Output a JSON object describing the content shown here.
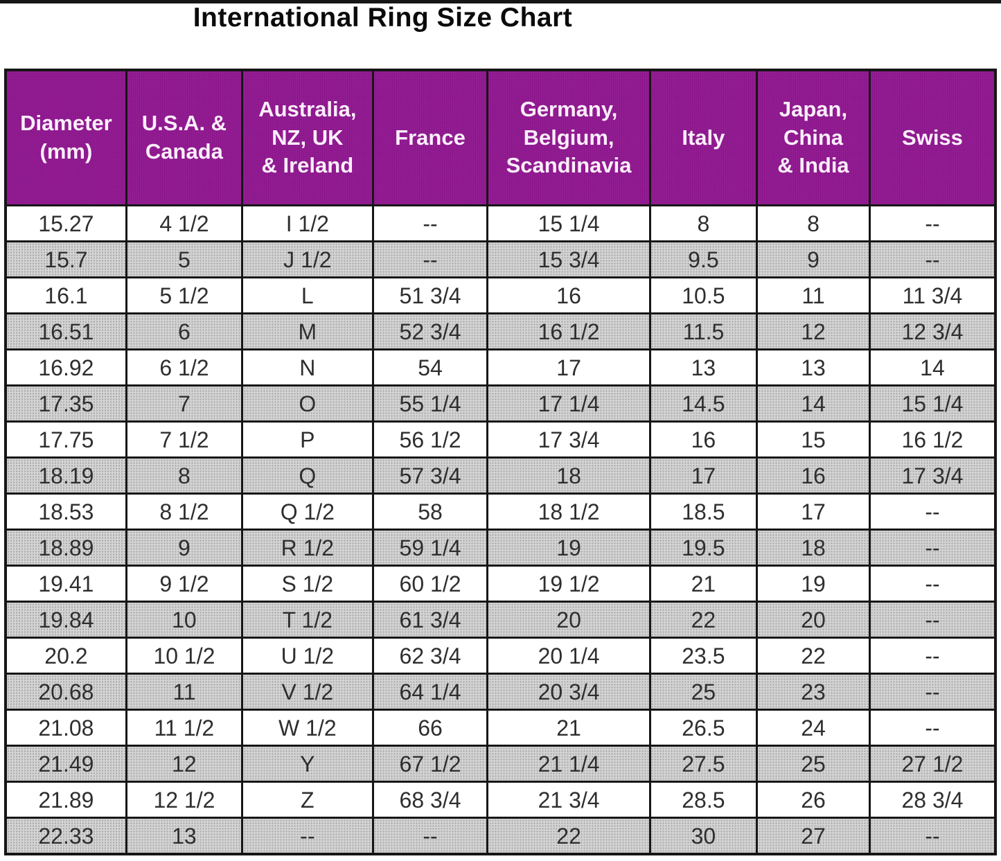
{
  "title": "International Ring Size Chart",
  "chart_data": {
    "type": "table",
    "title": "International Ring Size Chart",
    "columns": [
      {
        "id": "diameter-mm",
        "label": "Diameter\n(mm)"
      },
      {
        "id": "usa-canada",
        "label": "U.S.A. &\nCanada"
      },
      {
        "id": "australia-nz-uk-ireland",
        "label": "Australia,\nNZ, UK\n& Ireland"
      },
      {
        "id": "france",
        "label": "France"
      },
      {
        "id": "germany-belgium-scandinavia",
        "label": "Germany,\nBelgium,\nScandinavia"
      },
      {
        "id": "italy",
        "label": "Italy"
      },
      {
        "id": "japan-china-india",
        "label": "Japan,\nChina\n& India"
      },
      {
        "id": "swiss",
        "label": "Swiss"
      }
    ],
    "col_widths_pct": [
      12.2,
      11.7,
      13.2,
      11.6,
      16.4,
      10.8,
      11.4,
      12.7
    ],
    "rows": [
      [
        "15.27",
        "4 1/2",
        "I 1/2",
        "--",
        "15 1/4",
        "8",
        "8",
        "--"
      ],
      [
        "15.7",
        "5",
        "J 1/2",
        "--",
        "15 3/4",
        "9.5",
        "9",
        "--"
      ],
      [
        "16.1",
        "5 1/2",
        "L",
        "51 3/4",
        "16",
        "10.5",
        "11",
        "11 3/4"
      ],
      [
        "16.51",
        "6",
        "M",
        "52 3/4",
        "16 1/2",
        "11.5",
        "12",
        "12 3/4"
      ],
      [
        "16.92",
        "6 1/2",
        "N",
        "54",
        "17",
        "13",
        "13",
        "14"
      ],
      [
        "17.35",
        "7",
        "O",
        "55 1/4",
        "17 1/4",
        "14.5",
        "14",
        "15 1/4"
      ],
      [
        "17.75",
        "7 1/2",
        "P",
        "56 1/2",
        "17 3/4",
        "16",
        "15",
        "16 1/2"
      ],
      [
        "18.19",
        "8",
        "Q",
        "57 3/4",
        "18",
        "17",
        "16",
        "17 3/4"
      ],
      [
        "18.53",
        "8 1/2",
        "Q 1/2",
        "58",
        "18 1/2",
        "18.5",
        "17",
        "--"
      ],
      [
        "18.89",
        "9",
        "R 1/2",
        "59 1/4",
        "19",
        "19.5",
        "18",
        "--"
      ],
      [
        "19.41",
        "9 1/2",
        "S 1/2",
        "60 1/2",
        "19 1/2",
        "21",
        "19",
        "--"
      ],
      [
        "19.84",
        "10",
        "T 1/2",
        "61 3/4",
        "20",
        "22",
        "20",
        "--"
      ],
      [
        "20.2",
        "10 1/2",
        "U 1/2",
        "62 3/4",
        "20 1/4",
        "23.5",
        "22",
        "--"
      ],
      [
        "20.68",
        "11",
        "V 1/2",
        "64 1/4",
        "20 3/4",
        "25",
        "23",
        "--"
      ],
      [
        "21.08",
        "11 1/2",
        "W 1/2",
        "66",
        "21",
        "26.5",
        "24",
        "--"
      ],
      [
        "21.49",
        "12",
        "Y",
        "67 1/2",
        "21 1/4",
        "27.5",
        "25",
        "27 1/2"
      ],
      [
        "21.89",
        "12 1/2",
        "Z",
        "68 3/4",
        "21 3/4",
        "28.5",
        "26",
        "28 3/4"
      ],
      [
        "22.33",
        "13",
        "--",
        "--",
        "22",
        "30",
        "27",
        "--"
      ]
    ]
  },
  "colors": {
    "header_bg": "#8D158D",
    "header_text": "#FBEFFB",
    "row_bg": "#FFFFFF",
    "row_alt_bg": "#D4D4D4",
    "grid_line": "#161616",
    "cell_text": "#2E2E2E",
    "title_text": "#0B0B0B"
  }
}
